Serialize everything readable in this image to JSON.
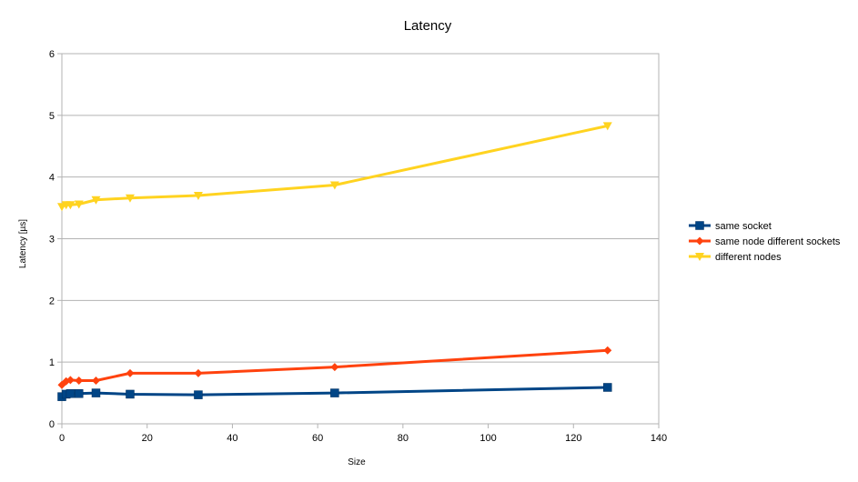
{
  "chart_data": {
    "type": "line",
    "title": "Latency",
    "xlabel": "Size",
    "ylabel": "Latency [µs]",
    "xlim": [
      0,
      140
    ],
    "ylim": [
      0,
      6
    ],
    "xticks": [
      0,
      20,
      40,
      60,
      80,
      100,
      120,
      140
    ],
    "yticks": [
      0,
      1,
      2,
      3,
      4,
      5,
      6
    ],
    "grid": "horizontal",
    "legend_position": "right",
    "series": [
      {
        "name": "same socket",
        "color": "#004586",
        "marker": "square",
        "x": [
          0,
          1,
          2,
          4,
          8,
          16,
          32,
          64,
          128
        ],
        "y": [
          0.44,
          0.48,
          0.49,
          0.49,
          0.5,
          0.48,
          0.47,
          0.5,
          0.59
        ]
      },
      {
        "name": "same node different sockets",
        "color": "#ff420e",
        "marker": "diamond",
        "x": [
          0,
          1,
          2,
          4,
          8,
          16,
          32,
          64,
          128
        ],
        "y": [
          0.63,
          0.69,
          0.71,
          0.7,
          0.7,
          0.82,
          0.82,
          0.92,
          1.19
        ]
      },
      {
        "name": "different nodes",
        "color": "#ffd320",
        "marker": "triangle-down",
        "x": [
          0,
          1,
          2,
          4,
          8,
          16,
          32,
          64,
          128
        ],
        "y": [
          3.52,
          3.55,
          3.55,
          3.56,
          3.63,
          3.66,
          3.7,
          3.87,
          4.83
        ]
      }
    ]
  }
}
